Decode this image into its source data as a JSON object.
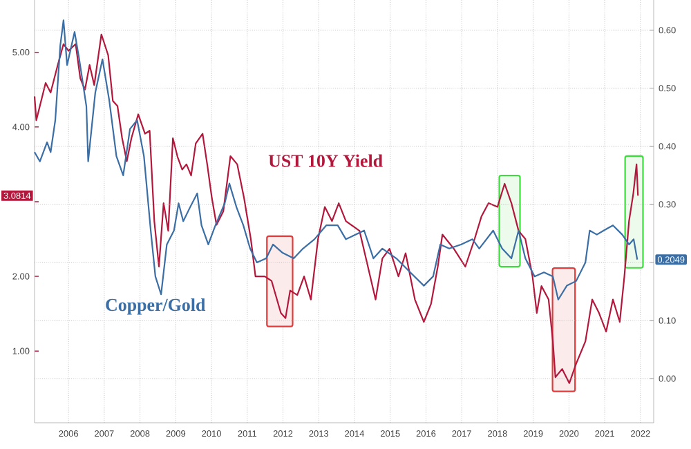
{
  "chart_data": {
    "type": "line",
    "xlim": [
      2005.55,
      2022.87
    ],
    "ylim": [
      0.04,
      5.7
    ],
    "y2lim": [
      -0.076,
      0.652
    ],
    "xticks": [
      {
        "value": 2006.5,
        "label": "2006"
      },
      {
        "value": 2007.5,
        "label": "2007"
      },
      {
        "value": 2008.5,
        "label": "2008"
      },
      {
        "value": 2009.5,
        "label": "2009"
      },
      {
        "value": 2010.5,
        "label": "2010"
      },
      {
        "value": 2011.5,
        "label": "2011"
      },
      {
        "value": 2012.5,
        "label": "2012"
      },
      {
        "value": 2013.5,
        "label": "2013"
      },
      {
        "value": 2014.5,
        "label": "2014"
      },
      {
        "value": 2015.5,
        "label": "2015"
      },
      {
        "value": 2016.5,
        "label": "2016"
      },
      {
        "value": 2017.5,
        "label": "2017"
      },
      {
        "value": 2018.5,
        "label": "2018"
      },
      {
        "value": 2019.5,
        "label": "2019"
      },
      {
        "value": 2020.5,
        "label": "2020"
      },
      {
        "value": 2021.5,
        "label": "2021"
      },
      {
        "value": 2022.5,
        "label": "2022"
      }
    ],
    "yticks": [
      {
        "value": 1,
        "label": "1.00"
      },
      {
        "value": 2,
        "label": "2.00"
      },
      {
        "value": 3,
        "label": null
      },
      {
        "value": 4,
        "label": "4.00"
      },
      {
        "value": 5,
        "label": "5.00"
      }
    ],
    "y2ticks": [
      {
        "value": 0,
        "label": "0.00"
      },
      {
        "value": 0.1,
        "label": "0.10"
      },
      {
        "value": 0.2,
        "label": null
      },
      {
        "value": 0.3,
        "label": "0.30"
      },
      {
        "value": 0.4,
        "label": "0.40"
      },
      {
        "value": 0.5,
        "label": "0.50"
      },
      {
        "value": 0.6,
        "label": "0.60"
      }
    ],
    "grid": true,
    "line_style": "solid",
    "series": [
      {
        "name": "UST 10Y Yield",
        "color": "#b3173c",
        "x": [
          2005.55,
          2005.6,
          2005.86,
          2006.0,
          2006.2,
          2006.36,
          2006.5,
          2006.7,
          2006.83,
          2006.96,
          2007.09,
          2007.22,
          2007.42,
          2007.61,
          2007.74,
          2007.87,
          2008.0,
          2008.13,
          2008.26,
          2008.45,
          2008.64,
          2008.77,
          2008.9,
          2009.03,
          2009.16,
          2009.29,
          2009.42,
          2009.55,
          2009.68,
          2009.8,
          2009.93,
          2010.06,
          2010.25,
          2010.38,
          2010.51,
          2010.64,
          2010.83,
          2011.03,
          2011.22,
          2011.41,
          2011.6,
          2011.73,
          2011.99,
          2012.18,
          2012.44,
          2012.57,
          2012.7,
          2012.9,
          2013.09,
          2013.28,
          2013.48,
          2013.67,
          2013.87,
          2014.06,
          2014.26,
          2014.64,
          2015.09,
          2015.28,
          2015.48,
          2015.73,
          2015.93,
          2016.19,
          2016.44,
          2016.64,
          2016.83,
          2016.96,
          2017.28,
          2017.6,
          2017.86,
          2018.05,
          2018.25,
          2018.5,
          2018.7,
          2018.89,
          2019.09,
          2019.28,
          2019.48,
          2019.6,
          2019.73,
          2019.93,
          2020.05,
          2020.12,
          2020.31,
          2020.51,
          2020.7,
          2020.96,
          2021.15,
          2021.34,
          2021.54,
          2021.73,
          2021.92,
          2022.05,
          2022.18,
          2022.3,
          2022.39,
          2022.43
        ],
        "values": [
          4.41,
          4.09,
          4.59,
          4.46,
          4.83,
          5.11,
          5.02,
          5.11,
          4.65,
          4.5,
          4.83,
          4.56,
          5.24,
          4.96,
          4.35,
          4.28,
          3.85,
          3.54,
          3.85,
          4.17,
          3.91,
          3.95,
          2.74,
          2.13,
          2.98,
          2.61,
          3.85,
          3.6,
          3.43,
          3.5,
          3.35,
          3.78,
          3.91,
          3.5,
          3.05,
          2.69,
          2.87,
          3.61,
          3.5,
          3.05,
          2.5,
          2.0,
          2.0,
          1.94,
          1.51,
          1.44,
          1.81,
          1.75,
          2.0,
          1.69,
          2.5,
          2.93,
          2.74,
          2.98,
          2.74,
          2.61,
          1.69,
          2.24,
          2.37,
          2.0,
          2.31,
          1.69,
          1.39,
          1.63,
          2.13,
          2.56,
          2.37,
          2.13,
          2.5,
          2.8,
          2.98,
          2.93,
          3.24,
          2.98,
          2.61,
          2.5,
          2.0,
          1.51,
          1.87,
          1.69,
          1.13,
          0.65,
          0.76,
          0.57,
          0.83,
          1.13,
          1.69,
          1.51,
          1.26,
          1.69,
          1.39,
          2.0,
          2.74,
          3.11,
          3.5,
          3.08
        ]
      },
      {
        "name": "Copper/Gold",
        "color": "#3a6ea5",
        "axis": "y2",
        "x": [
          2005.55,
          2005.7,
          2005.9,
          2006.0,
          2006.13,
          2006.27,
          2006.36,
          2006.46,
          2006.67,
          2006.8,
          2007.0,
          2007.05,
          2007.25,
          2007.45,
          2007.64,
          2007.84,
          2008.03,
          2008.22,
          2008.42,
          2008.61,
          2008.8,
          2008.93,
          2009.09,
          2009.25,
          2009.45,
          2009.58,
          2009.71,
          2009.9,
          2010.1,
          2010.22,
          2010.41,
          2010.61,
          2010.87,
          2011.0,
          2011.2,
          2011.39,
          2011.58,
          2011.77,
          2012.03,
          2012.22,
          2012.48,
          2012.8,
          2013.06,
          2013.38,
          2013.71,
          2014.03,
          2014.26,
          2014.77,
          2015.03,
          2015.28,
          2015.67,
          2016.06,
          2016.44,
          2016.7,
          2016.9,
          2017.15,
          2017.48,
          2017.8,
          2017.99,
          2018.38,
          2018.63,
          2018.89,
          2019.09,
          2019.28,
          2019.54,
          2019.8,
          2020.05,
          2020.2,
          2020.44,
          2020.7,
          2020.96,
          2021.08,
          2021.28,
          2021.47,
          2021.73,
          2021.99,
          2022.18,
          2022.31,
          2022.41
        ],
        "values": [
          0.39,
          0.374,
          0.407,
          0.39,
          0.445,
          0.574,
          0.617,
          0.54,
          0.597,
          0.55,
          0.469,
          0.374,
          0.493,
          0.55,
          0.479,
          0.383,
          0.35,
          0.43,
          0.445,
          0.383,
          0.255,
          0.176,
          0.145,
          0.231,
          0.255,
          0.302,
          0.271,
          0.295,
          0.319,
          0.264,
          0.231,
          0.264,
          0.302,
          0.336,
          0.295,
          0.264,
          0.224,
          0.2,
          0.207,
          0.231,
          0.217,
          0.207,
          0.224,
          0.24,
          0.264,
          0.264,
          0.24,
          0.255,
          0.207,
          0.224,
          0.207,
          0.183,
          0.16,
          0.176,
          0.231,
          0.224,
          0.231,
          0.24,
          0.224,
          0.255,
          0.224,
          0.207,
          0.255,
          0.207,
          0.176,
          0.183,
          0.176,
          0.136,
          0.16,
          0.168,
          0.2,
          0.255,
          0.248,
          0.255,
          0.264,
          0.248,
          0.231,
          0.24,
          0.205
        ]
      }
    ],
    "bands": [
      {
        "axis": "x",
        "from": 2012.05,
        "to": 2012.77,
        "color": "#e03c3c"
      },
      {
        "axis": "x",
        "from": 2018.55,
        "to": 2019.13,
        "color": "#3ddc3d"
      },
      {
        "axis": "x",
        "from": 2020.04,
        "to": 2020.67,
        "color": "#e03c3c"
      },
      {
        "axis": "x",
        "from": 2022.07,
        "to": 2022.57,
        "color": "#3ddc3d"
      }
    ],
    "annotations": [
      "3.0814",
      "0.2049"
    ]
  }
}
